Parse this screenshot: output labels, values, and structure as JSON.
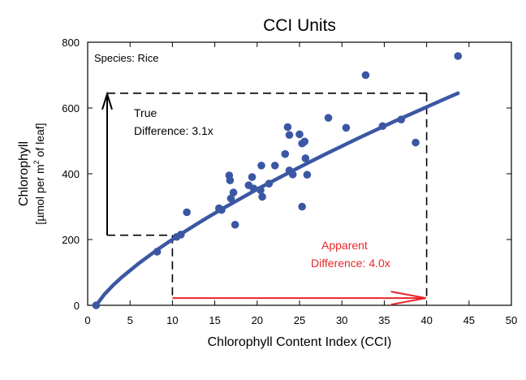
{
  "chart_data": {
    "type": "scatter",
    "title": "CCI Units",
    "xlabel": "Chlorophyll Content Index (CCI)",
    "ylabel_line1": "Chlorophyll",
    "ylabel_line2_pre": "[µmol per m",
    "ylabel_line2_sup": "2",
    "ylabel_line2_post": " of leaf]",
    "xlim": [
      0,
      50
    ],
    "ylim": [
      0,
      800
    ],
    "xticks": [
      0,
      5,
      10,
      15,
      20,
      25,
      30,
      35,
      40,
      45,
      50
    ],
    "yticks": [
      0,
      200,
      400,
      600,
      800
    ],
    "grid": false,
    "species_label": "Species: Rice",
    "points": [
      {
        "x": 1.0,
        "y": 0
      },
      {
        "x": 8.2,
        "y": 163
      },
      {
        "x": 10.5,
        "y": 208
      },
      {
        "x": 11.0,
        "y": 215
      },
      {
        "x": 11.7,
        "y": 283
      },
      {
        "x": 15.5,
        "y": 295
      },
      {
        "x": 15.8,
        "y": 290
      },
      {
        "x": 16.7,
        "y": 395
      },
      {
        "x": 16.8,
        "y": 380
      },
      {
        "x": 16.9,
        "y": 325
      },
      {
        "x": 17.2,
        "y": 343
      },
      {
        "x": 17.4,
        "y": 245
      },
      {
        "x": 19.0,
        "y": 365
      },
      {
        "x": 19.4,
        "y": 390
      },
      {
        "x": 19.6,
        "y": 355
      },
      {
        "x": 20.4,
        "y": 350
      },
      {
        "x": 20.5,
        "y": 425
      },
      {
        "x": 20.6,
        "y": 330
      },
      {
        "x": 21.4,
        "y": 370
      },
      {
        "x": 22.1,
        "y": 425
      },
      {
        "x": 23.3,
        "y": 460
      },
      {
        "x": 23.6,
        "y": 542
      },
      {
        "x": 23.8,
        "y": 518
      },
      {
        "x": 23.8,
        "y": 410
      },
      {
        "x": 24.2,
        "y": 398
      },
      {
        "x": 25.0,
        "y": 520
      },
      {
        "x": 25.3,
        "y": 300
      },
      {
        "x": 25.3,
        "y": 492
      },
      {
        "x": 25.6,
        "y": 498
      },
      {
        "x": 25.7,
        "y": 447
      },
      {
        "x": 25.9,
        "y": 397
      },
      {
        "x": 28.4,
        "y": 570
      },
      {
        "x": 30.5,
        "y": 540
      },
      {
        "x": 32.8,
        "y": 700
      },
      {
        "x": 34.8,
        "y": 545
      },
      {
        "x": 37.0,
        "y": 565
      },
      {
        "x": 38.7,
        "y": 495
      },
      {
        "x": 43.7,
        "y": 758
      }
    ],
    "fit_curve": [
      {
        "x": 1,
        "y": 0
      },
      {
        "x": 2,
        "y": 34
      },
      {
        "x": 3,
        "y": 61
      },
      {
        "x": 4,
        "y": 85
      },
      {
        "x": 5,
        "y": 106
      },
      {
        "x": 6,
        "y": 127
      },
      {
        "x": 7,
        "y": 146
      },
      {
        "x": 8,
        "y": 165
      },
      {
        "x": 9,
        "y": 183
      },
      {
        "x": 10,
        "y": 200
      },
      {
        "x": 12,
        "y": 233
      },
      {
        "x": 14,
        "y": 265
      },
      {
        "x": 16,
        "y": 295
      },
      {
        "x": 18,
        "y": 324
      },
      {
        "x": 20,
        "y": 353
      },
      {
        "x": 22,
        "y": 380
      },
      {
        "x": 24,
        "y": 407
      },
      {
        "x": 26,
        "y": 433
      },
      {
        "x": 28,
        "y": 459
      },
      {
        "x": 30,
        "y": 484
      },
      {
        "x": 32,
        "y": 509
      },
      {
        "x": 34,
        "y": 533
      },
      {
        "x": 36,
        "y": 557
      },
      {
        "x": 38,
        "y": 580
      },
      {
        "x": 40,
        "y": 603
      },
      {
        "x": 42,
        "y": 626
      },
      {
        "x": 43.7,
        "y": 645
      }
    ],
    "annotations": {
      "true_difference": {
        "label_line1": "True",
        "label_line2": "Difference: 3.1x",
        "color": "#000000",
        "arrow_x": 2.3,
        "y_low": 213,
        "y_high": 645,
        "hline_low_x_end": 10,
        "hline_high_x_end": 40
      },
      "apparent_difference": {
        "label_line1": "Apparent",
        "label_line2": "Difference: 4.0x",
        "color": "#e8262a",
        "arrow_y": 22,
        "x_low": 10,
        "x_high": 40
      }
    },
    "colors": {
      "points": "#3b57a4",
      "curve": "#3b57a4",
      "axes": "#000000"
    }
  }
}
